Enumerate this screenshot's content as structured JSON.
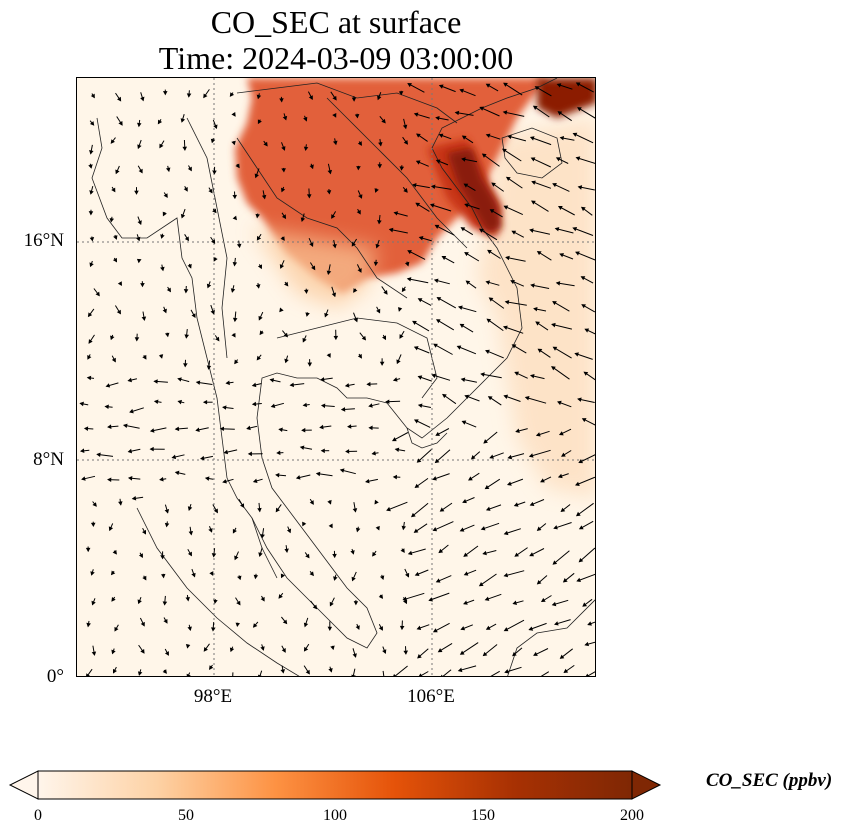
{
  "title_line1": "CO_SEC at surface",
  "title_line2": "Time: 2024-03-09 03:00:00",
  "map": {
    "lat_labels": [
      "16°N",
      "8°N",
      "0°"
    ],
    "lon_labels": [
      "98°E",
      "106°E"
    ],
    "gridlines": "dotted"
  },
  "colorbar": {
    "label": "CO_SEC (ppbv)",
    "ticks": [
      "0",
      "50",
      "100",
      "150",
      "200"
    ],
    "min": 0,
    "max": 200,
    "extend": "both",
    "colormap": [
      "#fff5eb",
      "#fdd2a5",
      "#fd9243",
      "#e55309",
      "#a83103",
      "#7f2704"
    ]
  }
}
